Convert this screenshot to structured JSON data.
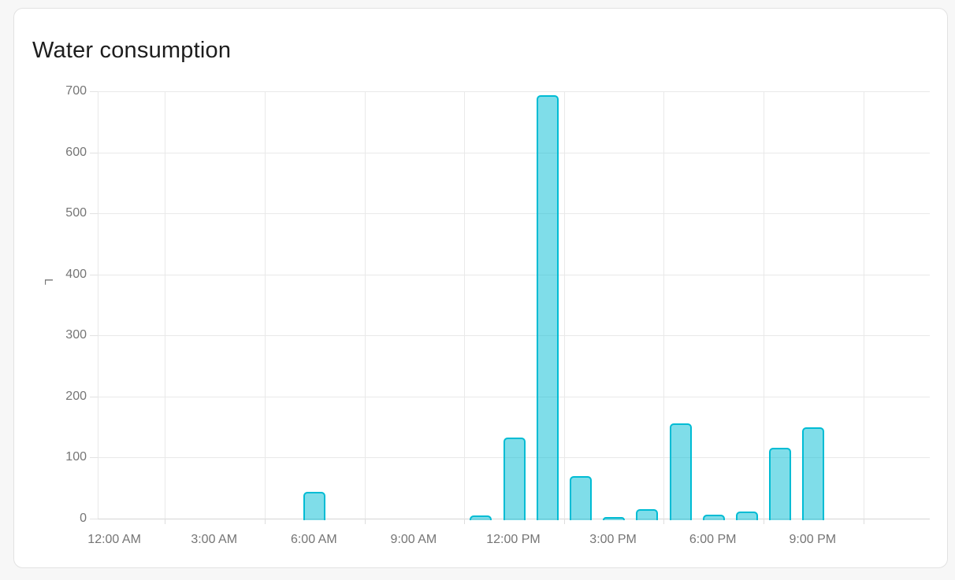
{
  "card": {
    "title": "Water consumption"
  },
  "chart_data": {
    "type": "bar",
    "title": "Water consumption",
    "xlabel": "",
    "ylabel": "L",
    "unit": "L",
    "ylim": [
      0,
      700
    ],
    "y_tick_values": [
      0,
      100,
      200,
      300,
      400,
      500,
      600,
      700
    ],
    "y_tick_labels": [
      "0",
      "100",
      "200",
      "300",
      "400",
      "500",
      "600",
      "700"
    ],
    "x_tick_hours": [
      0,
      3,
      6,
      9,
      12,
      15,
      18,
      21
    ],
    "x_tick_labels": [
      "12:00 AM",
      "3:00 AM",
      "6:00 AM",
      "9:00 AM",
      "12:00 PM",
      "3:00 PM",
      "6:00 PM",
      "9:00 PM"
    ],
    "x_hour_range": [
      -0.5,
      24.5
    ],
    "vertical_gridline_hours": [
      1.5,
      4.5,
      7.5,
      10.5,
      13.5,
      16.5,
      19.5,
      22.5
    ],
    "grid": "on",
    "legend": "none",
    "categories": [
      "12 AM",
      "1 AM",
      "2 AM",
      "3 AM",
      "4 AM",
      "5 AM",
      "6 AM",
      "7 AM",
      "8 AM",
      "9 AM",
      "10 AM",
      "11 AM",
      "12 PM",
      "1 PM",
      "2 PM",
      "3 PM",
      "4 PM",
      "5 PM",
      "6 PM",
      "7 PM",
      "8 PM",
      "9 PM",
      "10 PM",
      "11 PM"
    ],
    "values": [
      0,
      0,
      0,
      0,
      0,
      0,
      44,
      0,
      0,
      0,
      0,
      5,
      133,
      693,
      70,
      2,
      15,
      156,
      7,
      11,
      116,
      149,
      0,
      0
    ]
  },
  "colors": {
    "accent": "#00bcd4",
    "bar_fill": "rgba(0,188,212,0.5)",
    "bar_stroke": "#00bcd4",
    "title_text": "#1d1d1d",
    "axis_label": "#757575",
    "gridline": "#e9e9e9",
    "card_background": "#ffffff",
    "page_background": "#f7f7f7"
  }
}
